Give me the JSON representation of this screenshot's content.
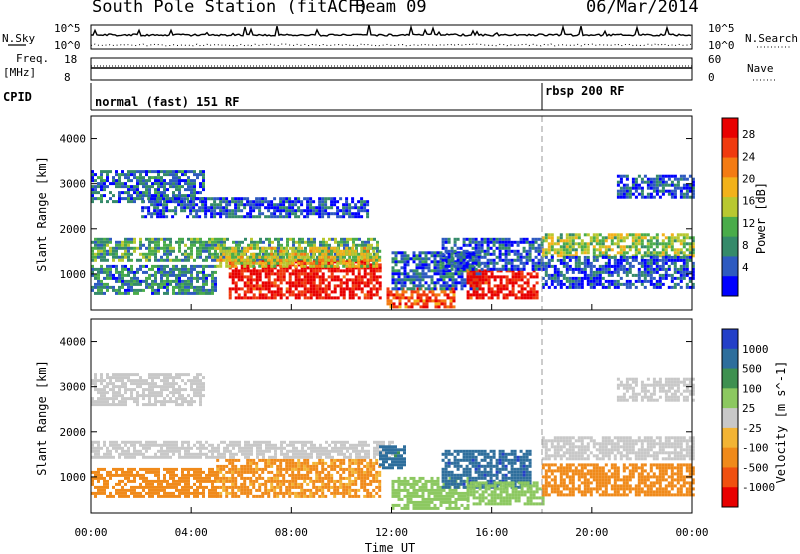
{
  "header": {
    "station": "South Pole Station (fitACF)",
    "beam": "Beam 09",
    "date": "06/Mar/2014"
  },
  "strip_labels": {
    "nsky": "N.Sky",
    "nsky_ticks": [
      "10^5",
      "10^0"
    ],
    "nsearch": "N.Search",
    "nsearch_ticks": [
      "10^5",
      "10^0"
    ],
    "freq": "Freq.",
    "freq_unit": "[MHz]",
    "freq_ticks": [
      "18",
      "8"
    ],
    "nave": "Nave",
    "nave_ticks": [
      "60",
      "0"
    ],
    "cpid": "CPID"
  },
  "cpid_segments": [
    {
      "label": "normal (fast) 151 RF",
      "start_hour": 0
    },
    {
      "label": "rbsp 200 RF",
      "start_hour": 18
    }
  ],
  "colors": {
    "power_scale": [
      "#0000ff",
      "#2e5ac0",
      "#358a6a",
      "#4aac4a",
      "#b8c830",
      "#f2b21a",
      "#f47b12",
      "#f03a0e",
      "#e80000"
    ],
    "velocity_scale": [
      "#2440c8",
      "#2e6e9c",
      "#3e9050",
      "#8cc860",
      "#c8c8c8",
      "#f3b434",
      "#f08a1a",
      "#f05010",
      "#e80000"
    ],
    "dashed_marker": "#999999"
  },
  "chart_data": [
    {
      "type": "heatmap",
      "panel": "power",
      "xlabel": "Time UT",
      "ylabel": "Slant Range [km]",
      "ylim": [
        200,
        4500
      ],
      "xlim": [
        0,
        24
      ],
      "yticks": [
        "1000",
        "2000",
        "3000",
        "4000"
      ],
      "xticks": [
        "00:00",
        "04:00",
        "08:00",
        "12:00",
        "16:00",
        "20:00",
        "00:00"
      ],
      "colorbar_label": "Power [dB]",
      "colorbar_ticks": [
        "28",
        "24",
        "20",
        "16",
        "12",
        "8",
        "4"
      ],
      "regions": [
        {
          "t": [
            0.0,
            11.5
          ],
          "r": [
            1300,
            1800
          ],
          "v": 10
        },
        {
          "t": [
            0.0,
            4.5
          ],
          "r": [
            2600,
            3300
          ],
          "v": 6
        },
        {
          "t": [
            2.0,
            11.0
          ],
          "r": [
            2300,
            2700
          ],
          "v": 5
        },
        {
          "t": [
            0.0,
            5.0
          ],
          "r": [
            600,
            1200
          ],
          "v": 8
        },
        {
          "t": [
            5.5,
            11.5
          ],
          "r": [
            500,
            1300
          ],
          "v": 28
        },
        {
          "t": [
            5.0,
            11.5
          ],
          "r": [
            1200,
            1600
          ],
          "v": 16
        },
        {
          "t": [
            11.8,
            14.5
          ],
          "r": [
            300,
            700
          ],
          "v": 24
        },
        {
          "t": [
            12.0,
            15.5
          ],
          "r": [
            700,
            1500
          ],
          "v": 6
        },
        {
          "t": [
            15.0,
            17.8
          ],
          "r": [
            500,
            1100
          ],
          "v": 28
        },
        {
          "t": [
            14.0,
            18.0
          ],
          "r": [
            1100,
            1800
          ],
          "v": 5
        },
        {
          "t": [
            18.0,
            24.0
          ],
          "r": [
            1400,
            1900
          ],
          "v": 14
        },
        {
          "t": [
            18.0,
            24.0
          ],
          "r": [
            700,
            1400
          ],
          "v": 5
        },
        {
          "t": [
            21.0,
            24.0
          ],
          "r": [
            2700,
            3200
          ],
          "v": 5
        }
      ]
    },
    {
      "type": "heatmap",
      "panel": "velocity",
      "xlabel": "Time UT",
      "ylabel": "Slant Range [km]",
      "ylim": [
        200,
        4500
      ],
      "xlim": [
        0,
        24
      ],
      "yticks": [
        "1000",
        "2000",
        "3000",
        "4000"
      ],
      "xticks": [
        "00:00",
        "04:00",
        "08:00",
        "12:00",
        "16:00",
        "20:00",
        "00:00"
      ],
      "colorbar_label": "Velocity [m s^-1]",
      "colorbar_ticks": [
        "1000",
        "500",
        "100",
        "25",
        "-25",
        "-100",
        "-500",
        "-1000"
      ],
      "regions": [
        {
          "t": [
            0.0,
            12.0
          ],
          "r": [
            1450,
            1800
          ],
          "v": 0
        },
        {
          "t": [
            0.0,
            4.5
          ],
          "r": [
            2600,
            3300
          ],
          "v": 0
        },
        {
          "t": [
            0.0,
            5.0
          ],
          "r": [
            600,
            1200
          ],
          "v": -150
        },
        {
          "t": [
            5.0,
            11.5
          ],
          "r": [
            600,
            1400
          ],
          "v": -120
        },
        {
          "t": [
            11.5,
            12.5
          ],
          "r": [
            1200,
            1700
          ],
          "v": 700
        },
        {
          "t": [
            12.0,
            15.0
          ],
          "r": [
            300,
            1000
          ],
          "v": 60
        },
        {
          "t": [
            14.0,
            17.5
          ],
          "r": [
            800,
            1600
          ],
          "v": 800
        },
        {
          "t": [
            15.0,
            18.0
          ],
          "r": [
            400,
            900
          ],
          "v": 60
        },
        {
          "t": [
            18.0,
            24.0
          ],
          "r": [
            1400,
            1900
          ],
          "v": 0
        },
        {
          "t": [
            18.0,
            24.0
          ],
          "r": [
            600,
            1300
          ],
          "v": -200
        },
        {
          "t": [
            21.0,
            24.0
          ],
          "r": [
            2700,
            3200
          ],
          "v": 0
        }
      ]
    }
  ]
}
